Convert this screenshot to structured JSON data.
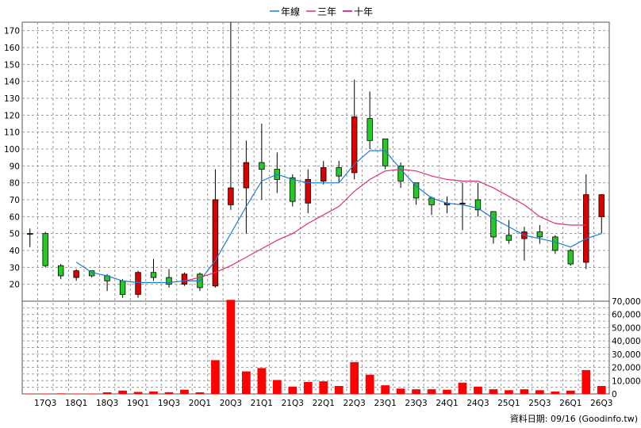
{
  "legend": [
    {
      "label": "年線",
      "color": "#1a7fd4"
    },
    {
      "label": "三年",
      "color": "#e0306a"
    },
    {
      "label": "十年",
      "color": "#c4006c"
    }
  ],
  "source_note": "資料日期: 09/16  (Goodinfo.tw)",
  "chart_data": [
    {
      "type": "candlestick",
      "name": "price",
      "ylim": [
        10,
        175
      ],
      "yticks": [
        20,
        30,
        40,
        50,
        60,
        70,
        80,
        90,
        100,
        110,
        120,
        130,
        140,
        150,
        160,
        170
      ],
      "grid": true,
      "x_tick_labels": [
        "17Q3",
        "18Q1",
        "18Q3",
        "19Q1",
        "19Q3",
        "20Q1",
        "20Q3",
        "21Q1",
        "21Q3",
        "22Q1",
        "22Q3",
        "23Q1",
        "23Q3",
        "24Q1",
        "24Q3",
        "25Q1",
        "25Q3",
        "26Q1",
        "26Q3"
      ],
      "x_tick_quarters": [
        1,
        3,
        5,
        7,
        9,
        11,
        13,
        15,
        17,
        19,
        21,
        23,
        25,
        27,
        29,
        31,
        33,
        35,
        37
      ],
      "candles": [
        {
          "q": 0,
          "open": 50,
          "close": 50,
          "high": 53,
          "low": 42
        },
        {
          "q": 1,
          "open": 50,
          "close": 31,
          "high": 51,
          "low": 30
        },
        {
          "q": 2,
          "open": 31,
          "close": 25,
          "high": 32,
          "low": 23
        },
        {
          "q": 3,
          "open": 24,
          "close": 28,
          "high": 29,
          "low": 22
        },
        {
          "q": 4,
          "open": 28,
          "close": 25,
          "high": 28,
          "low": 24
        },
        {
          "q": 5,
          "open": 25,
          "close": 22,
          "high": 26,
          "low": 16
        },
        {
          "q": 6,
          "open": 22,
          "close": 14,
          "high": 23,
          "low": 12
        },
        {
          "q": 7,
          "open": 14,
          "close": 27,
          "high": 28,
          "low": 12
        },
        {
          "q": 8,
          "open": 27,
          "close": 24,
          "high": 35,
          "low": 22
        },
        {
          "q": 9,
          "open": 24,
          "close": 20,
          "high": 29,
          "low": 18
        },
        {
          "q": 10,
          "open": 20,
          "close": 26,
          "high": 27,
          "low": 19
        },
        {
          "q": 11,
          "open": 26,
          "close": 18,
          "high": 27,
          "low": 16
        },
        {
          "q": 12,
          "open": 19,
          "close": 70,
          "high": 88,
          "low": 18
        },
        {
          "q": 13,
          "open": 67,
          "close": 77,
          "high": 175,
          "low": 64
        },
        {
          "q": 14,
          "open": 77,
          "close": 92,
          "high": 105,
          "low": 50
        },
        {
          "q": 15,
          "open": 92,
          "close": 88,
          "high": 115,
          "low": 70
        },
        {
          "q": 16,
          "open": 88,
          "close": 82,
          "high": 98,
          "low": 74
        },
        {
          "q": 17,
          "open": 83,
          "close": 69,
          "high": 85,
          "low": 66
        },
        {
          "q": 18,
          "open": 68,
          "close": 82,
          "high": 88,
          "low": 62
        },
        {
          "q": 19,
          "open": 81,
          "close": 89,
          "high": 93,
          "low": 79
        },
        {
          "q": 20,
          "open": 89,
          "close": 84,
          "high": 93,
          "low": 80
        },
        {
          "q": 21,
          "open": 86,
          "close": 119,
          "high": 141,
          "low": 82
        },
        {
          "q": 22,
          "open": 118,
          "close": 105,
          "high": 134,
          "low": 100
        },
        {
          "q": 23,
          "open": 106,
          "close": 90,
          "high": 106,
          "low": 88
        },
        {
          "q": 24,
          "open": 90,
          "close": 81,
          "high": 92,
          "low": 77
        },
        {
          "q": 25,
          "open": 80,
          "close": 71,
          "high": 80,
          "low": 67
        },
        {
          "q": 26,
          "open": 71,
          "close": 67,
          "high": 72,
          "low": 61
        },
        {
          "q": 27,
          "open": 67,
          "close": 68,
          "high": 72,
          "low": 62
        },
        {
          "q": 28,
          "open": 68,
          "close": 68,
          "high": 80,
          "low": 52
        },
        {
          "q": 29,
          "open": 70,
          "close": 64,
          "high": 80,
          "low": 60
        },
        {
          "q": 30,
          "open": 63,
          "close": 48,
          "high": 63,
          "low": 44
        },
        {
          "q": 31,
          "open": 49,
          "close": 46,
          "high": 58,
          "low": 44
        },
        {
          "q": 32,
          "open": 47,
          "close": 51,
          "high": 54,
          "low": 34
        },
        {
          "q": 33,
          "open": 51,
          "close": 48,
          "high": 55,
          "low": 44
        },
        {
          "q": 34,
          "open": 48,
          "close": 40,
          "high": 49,
          "low": 38
        },
        {
          "q": 35,
          "open": 40,
          "close": 32,
          "high": 41,
          "low": 31
        },
        {
          "q": 36,
          "open": 33,
          "close": 73,
          "high": 85,
          "low": 29
        },
        {
          "q": 37,
          "open": 60,
          "close": 73,
          "high": 73,
          "low": 50
        }
      ],
      "series": [
        {
          "name": "年線",
          "points": [
            [
              3,
              33
            ],
            [
              4,
              27
            ],
            [
              5,
              25
            ],
            [
              6,
              22
            ],
            [
              7,
              21
            ],
            [
              8,
              21
            ],
            [
              9,
              21
            ],
            [
              10,
              22
            ],
            [
              11,
              22
            ],
            [
              12,
              34
            ],
            [
              13,
              50
            ],
            [
              14,
              66
            ],
            [
              15,
              81
            ],
            [
              16,
              85
            ],
            [
              17,
              82
            ],
            [
              18,
              80
            ],
            [
              19,
              80
            ],
            [
              20,
              80
            ],
            [
              21,
              91
            ],
            [
              22,
              99
            ],
            [
              23,
              99
            ],
            [
              24,
              88
            ],
            [
              25,
              78
            ],
            [
              26,
              71
            ],
            [
              27,
              68
            ],
            [
              28,
              67
            ],
            [
              29,
              65
            ],
            [
              30,
              59
            ],
            [
              31,
              54
            ],
            [
              32,
              49
            ],
            [
              33,
              47
            ],
            [
              34,
              45
            ],
            [
              35,
              42
            ],
            [
              36,
              47
            ],
            [
              37,
              50
            ]
          ]
        },
        {
          "name": "三年",
          "points": [
            [
              10,
              22
            ],
            [
              11,
              24
            ],
            [
              12,
              27
            ],
            [
              13,
              31
            ],
            [
              14,
              36
            ],
            [
              15,
              41
            ],
            [
              16,
              46
            ],
            [
              17,
              50
            ],
            [
              18,
              56
            ],
            [
              19,
              61
            ],
            [
              20,
              66
            ],
            [
              21,
              75
            ],
            [
              22,
              82
            ],
            [
              23,
              87
            ],
            [
              24,
              88
            ],
            [
              25,
              87
            ],
            [
              26,
              84
            ],
            [
              27,
              82
            ],
            [
              28,
              81
            ],
            [
              29,
              81
            ],
            [
              30,
              77
            ],
            [
              31,
              72
            ],
            [
              32,
              67
            ],
            [
              33,
              60
            ],
            [
              34,
              56
            ],
            [
              35,
              55
            ],
            [
              36,
              55
            ]
          ]
        }
      ]
    },
    {
      "type": "bar",
      "name": "volume",
      "ylim": [
        0,
        70000
      ],
      "yticks": [
        "0",
        "10,000",
        "20,000",
        "30,000",
        "40,000",
        "50,000",
        "60,000",
        "70,000"
      ],
      "ytick_values": [
        0,
        10000,
        20000,
        30000,
        40000,
        50000,
        60000,
        70000
      ],
      "grid": true,
      "values": [
        200,
        300,
        400,
        300,
        300,
        1200,
        2500,
        1500,
        1800,
        1300,
        3200,
        1200,
        25500,
        71000,
        17000,
        19500,
        10500,
        5500,
        9000,
        9500,
        6000,
        24000,
        14500,
        6500,
        4000,
        3500,
        3500,
        3200,
        8500,
        5500,
        3500,
        2800,
        3500,
        2800,
        1800,
        2500,
        18000,
        6000
      ]
    }
  ]
}
